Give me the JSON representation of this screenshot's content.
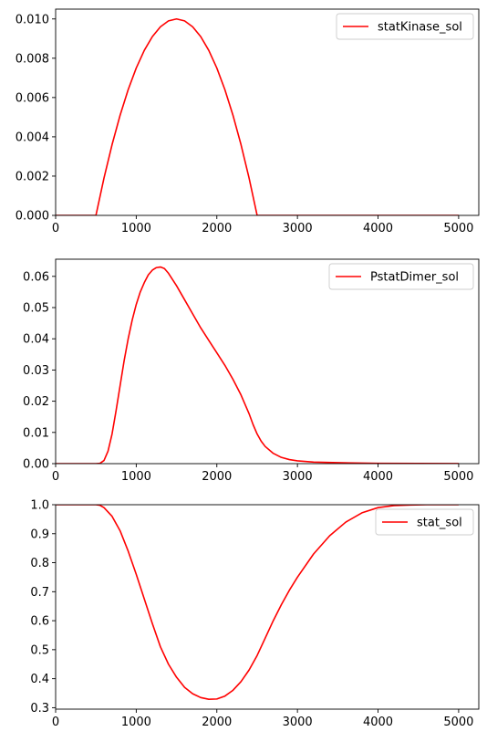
{
  "chart_data": [
    {
      "type": "line",
      "xlim": [
        0,
        5250
      ],
      "ylim": [
        0,
        0.0105
      ],
      "x_ticks": [
        "0",
        "1000",
        "2000",
        "3000",
        "4000",
        "5000"
      ],
      "y_ticks": [
        "0.000",
        "0.002",
        "0.004",
        "0.006",
        "0.008",
        "0.010"
      ],
      "legend_position": "top-right",
      "series": [
        {
          "name": "statKinase_sol",
          "color": "#ff0000",
          "x": [
            0,
            500,
            600,
            700,
            800,
            900,
            1000,
            1100,
            1200,
            1300,
            1400,
            1500,
            1600,
            1700,
            1800,
            1900,
            2000,
            2100,
            2200,
            2300,
            2400,
            2500,
            3000,
            4000,
            5000
          ],
          "y": [
            0,
            0,
            0.0019,
            0.0036,
            0.0051,
            0.0064,
            0.0075,
            0.0084,
            0.0091,
            0.0096,
            0.0099,
            0.01,
            0.0099,
            0.0096,
            0.0091,
            0.0084,
            0.0075,
            0.0064,
            0.0051,
            0.0036,
            0.0019,
            0,
            0,
            0,
            0
          ]
        }
      ]
    },
    {
      "type": "line",
      "xlim": [
        0,
        5250
      ],
      "ylim": [
        0,
        0.0655
      ],
      "x_ticks": [
        "0",
        "1000",
        "2000",
        "3000",
        "4000",
        "5000"
      ],
      "y_ticks": [
        "0.00",
        "0.01",
        "0.02",
        "0.03",
        "0.04",
        "0.05",
        "0.06"
      ],
      "legend_position": "top-right",
      "series": [
        {
          "name": "PstatDimer_sol",
          "color": "#ff0000",
          "x": [
            0,
            500,
            550,
            600,
            650,
            700,
            750,
            800,
            850,
            900,
            950,
            1000,
            1050,
            1100,
            1150,
            1200,
            1250,
            1300,
            1350,
            1400,
            1500,
            1600,
            1700,
            1800,
            1900,
            2000,
            2100,
            2200,
            2300,
            2400,
            2450,
            2500,
            2550,
            2600,
            2700,
            2800,
            2900,
            3000,
            3200,
            3500,
            4000,
            4500,
            5000
          ],
          "y": [
            0,
            0,
            0.0001,
            0.001,
            0.004,
            0.0095,
            0.017,
            0.025,
            0.033,
            0.04,
            0.046,
            0.051,
            0.055,
            0.058,
            0.0605,
            0.062,
            0.0628,
            0.063,
            0.0625,
            0.061,
            0.057,
            0.0525,
            0.048,
            0.0435,
            0.0395,
            0.0355,
            0.0315,
            0.027,
            0.022,
            0.016,
            0.0125,
            0.0095,
            0.0072,
            0.0055,
            0.0033,
            0.002,
            0.0013,
            0.0009,
            0.0005,
            0.0003,
            0.0001,
            5e-05,
            2e-05
          ]
        }
      ]
    },
    {
      "type": "line",
      "xlim": [
        0,
        5250
      ],
      "ylim": [
        0.295,
        1.0
      ],
      "x_ticks": [
        "0",
        "1000",
        "2000",
        "3000",
        "4000",
        "5000"
      ],
      "y_ticks": [
        "0.3",
        "0.4",
        "0.5",
        "0.6",
        "0.7",
        "0.8",
        "0.9",
        "1.0"
      ],
      "legend_position": "top-right",
      "series": [
        {
          "name": "stat_sol",
          "color": "#ff0000",
          "x": [
            0,
            500,
            550,
            600,
            700,
            800,
            900,
            1000,
            1100,
            1200,
            1300,
            1400,
            1500,
            1600,
            1700,
            1800,
            1900,
            2000,
            2100,
            2200,
            2300,
            2400,
            2500,
            2600,
            2700,
            2800,
            2900,
            3000,
            3200,
            3400,
            3600,
            3800,
            4000,
            4200,
            4400,
            4600,
            5000
          ],
          "y": [
            1.0,
            1.0,
            0.998,
            0.99,
            0.96,
            0.91,
            0.84,
            0.76,
            0.675,
            0.59,
            0.51,
            0.45,
            0.405,
            0.37,
            0.348,
            0.335,
            0.329,
            0.33,
            0.34,
            0.36,
            0.39,
            0.43,
            0.48,
            0.54,
            0.6,
            0.655,
            0.705,
            0.75,
            0.83,
            0.893,
            0.94,
            0.972,
            0.99,
            0.997,
            0.999,
            1.0,
            1.0
          ]
        }
      ]
    }
  ]
}
